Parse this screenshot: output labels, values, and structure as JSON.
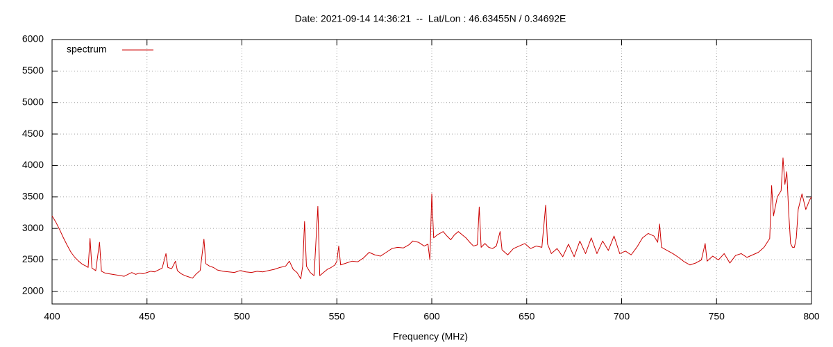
{
  "chart_data": {
    "type": "line",
    "title": "Date: 2021-09-14 14:36:21  --  Lat/Lon : 46.63455N / 0.34692E",
    "x_label": "Frequency (MHz)",
    "xlim": [
      400,
      800
    ],
    "xticks": [
      400,
      450,
      500,
      550,
      600,
      650,
      700,
      750,
      800
    ],
    "ylim": [
      1800,
      6000
    ],
    "yticks": [
      2000,
      2500,
      3000,
      3500,
      4000,
      4500,
      5000,
      5500,
      6000
    ],
    "grid": true,
    "legend": "top-left",
    "x": [
      400,
      402,
      404,
      406,
      408,
      410,
      412,
      414,
      416,
      418,
      419,
      420,
      421,
      423,
      425,
      426,
      428,
      430,
      432,
      434,
      436,
      438,
      440,
      442,
      444,
      446,
      448,
      450,
      452,
      454,
      456,
      458,
      460,
      461,
      463,
      465,
      466,
      468,
      470,
      472,
      474,
      476,
      478,
      480,
      481,
      483,
      485,
      487,
      490,
      493,
      496,
      499,
      502,
      505,
      508,
      511,
      514,
      517,
      520,
      523,
      525,
      527,
      529,
      531,
      532,
      533,
      534,
      536,
      538,
      540,
      541,
      543,
      545,
      547,
      549,
      550,
      551,
      552,
      555,
      558,
      561,
      564,
      567,
      570,
      573,
      576,
      579,
      582,
      585,
      588,
      590,
      593,
      596,
      598,
      599,
      600,
      601,
      603,
      606,
      608,
      610,
      612,
      614,
      616,
      618,
      620,
      622,
      624,
      625,
      626,
      628,
      630,
      632,
      634,
      636,
      637,
      640,
      643,
      646,
      649,
      652,
      655,
      658,
      660,
      661,
      663,
      666,
      669,
      672,
      675,
      678,
      681,
      684,
      687,
      690,
      693,
      696,
      699,
      702,
      705,
      708,
      711,
      714,
      717,
      719,
      720,
      721,
      724,
      727,
      730,
      733,
      736,
      739,
      742,
      744,
      745,
      748,
      751,
      754,
      757,
      760,
      763,
      766,
      769,
      772,
      775,
      778,
      779,
      780,
      782,
      784,
      785,
      786,
      787,
      788,
      789,
      790,
      791,
      792,
      793,
      795,
      797,
      799,
      800
    ],
    "series": [
      {
        "name": "spectrum",
        "color": "#cc0000",
        "values": [
          3200,
          3100,
          2980,
          2850,
          2730,
          2620,
          2540,
          2480,
          2430,
          2400,
          2380,
          2840,
          2370,
          2330,
          2780,
          2320,
          2290,
          2280,
          2270,
          2260,
          2250,
          2240,
          2270,
          2300,
          2270,
          2290,
          2280,
          2300,
          2320,
          2310,
          2340,
          2370,
          2600,
          2380,
          2360,
          2480,
          2330,
          2280,
          2250,
          2230,
          2210,
          2280,
          2330,
          2830,
          2440,
          2400,
          2380,
          2340,
          2320,
          2310,
          2300,
          2330,
          2310,
          2300,
          2320,
          2310,
          2330,
          2350,
          2380,
          2400,
          2480,
          2350,
          2300,
          2200,
          2400,
          3110,
          2400,
          2300,
          2250,
          3350,
          2250,
          2300,
          2350,
          2380,
          2420,
          2480,
          2720,
          2420,
          2450,
          2480,
          2470,
          2530,
          2620,
          2580,
          2560,
          2620,
          2680,
          2700,
          2690,
          2740,
          2800,
          2780,
          2720,
          2750,
          2500,
          3550,
          2850,
          2900,
          2950,
          2880,
          2820,
          2900,
          2950,
          2900,
          2850,
          2780,
          2720,
          2740,
          3340,
          2700,
          2760,
          2700,
          2680,
          2720,
          2950,
          2660,
          2580,
          2680,
          2720,
          2760,
          2680,
          2720,
          2700,
          3370,
          2750,
          2600,
          2680,
          2550,
          2750,
          2550,
          2800,
          2600,
          2850,
          2600,
          2800,
          2650,
          2880,
          2600,
          2640,
          2580,
          2700,
          2850,
          2920,
          2880,
          2780,
          3070,
          2700,
          2650,
          2600,
          2540,
          2470,
          2420,
          2450,
          2500,
          2760,
          2480,
          2560,
          2500,
          2600,
          2450,
          2570,
          2600,
          2540,
          2580,
          2620,
          2700,
          2840,
          3680,
          3200,
          3500,
          3600,
          4120,
          3700,
          3900,
          3250,
          2760,
          2700,
          2700,
          2850,
          3300,
          3550,
          3300,
          3450,
          3500
        ]
      }
    ]
  }
}
